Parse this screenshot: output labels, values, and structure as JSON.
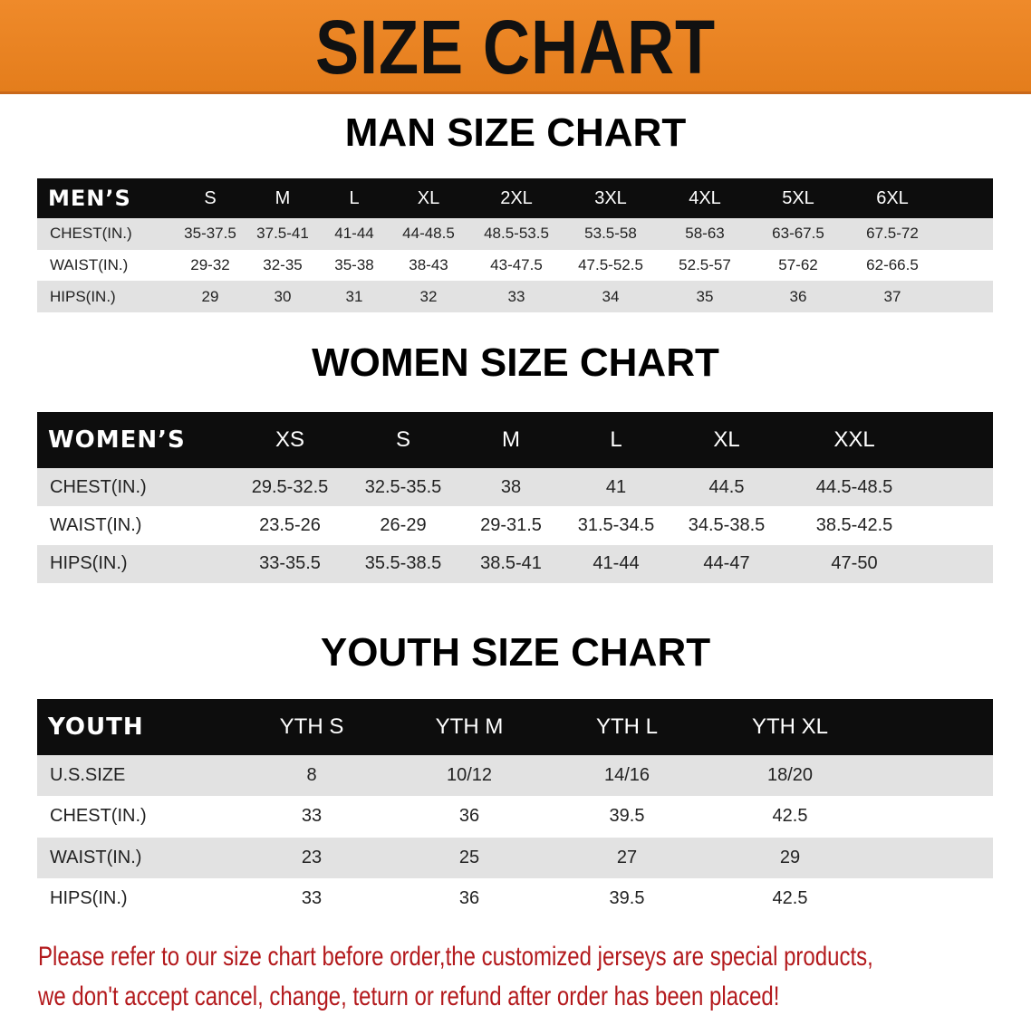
{
  "banner_title": "SIZE CHART",
  "men": {
    "title": "MAN SIZE CHART",
    "header": [
      "MEN’S",
      "S",
      "M",
      "L",
      "XL",
      "2XL",
      "3XL",
      "4XL",
      "5XL",
      "6XL"
    ],
    "rows": [
      [
        "CHEST(IN.)",
        "35-37.5",
        "37.5-41",
        "41-44",
        "44-48.5",
        "48.5-53.5",
        "53.5-58",
        "58-63",
        "63-67.5",
        "67.5-72"
      ],
      [
        "WAIST(IN.)",
        "29-32",
        "32-35",
        "35-38",
        "38-43",
        "43-47.5",
        "47.5-52.5",
        "52.5-57",
        "57-62",
        "62-66.5"
      ],
      [
        "HIPS(IN.)",
        "29",
        "30",
        "31",
        "32",
        "33",
        "34",
        "35",
        "36",
        "37"
      ]
    ]
  },
  "women": {
    "title": "WOMEN SIZE CHART",
    "header": [
      "WOMEN’S",
      "XS",
      "S",
      "M",
      "L",
      "XL",
      "XXL"
    ],
    "rows": [
      [
        "CHEST(IN.)",
        "29.5-32.5",
        "32.5-35.5",
        "38",
        "41",
        "44.5",
        "44.5-48.5"
      ],
      [
        "WAIST(IN.)",
        "23.5-26",
        "26-29",
        "29-31.5",
        "31.5-34.5",
        "34.5-38.5",
        "38.5-42.5"
      ],
      [
        "HIPS(IN.)",
        "33-35.5",
        "35.5-38.5",
        "38.5-41",
        "41-44",
        "44-47",
        "47-50"
      ]
    ]
  },
  "youth": {
    "title": "YOUTH SIZE CHART",
    "header": [
      "YOUTH",
      "YTH S",
      "YTH M",
      "YTH L",
      "YTH XL"
    ],
    "rows": [
      [
        "U.S.SIZE",
        "8",
        "10/12",
        "14/16",
        "18/20"
      ],
      [
        "CHEST(IN.)",
        "33",
        "36",
        "39.5",
        "42.5"
      ],
      [
        "WAIST(IN.)",
        "23",
        "25",
        "27",
        "29"
      ],
      [
        "HIPS(IN.)",
        "33",
        "36",
        "39.5",
        "42.5"
      ]
    ]
  },
  "note": [
    "Please refer to our size chart before order,the customized jerseys are special products,",
    "we don't accept cancel, change, teturn or refund after order has been placed!"
  ],
  "colors": {
    "banner": "#e8821f",
    "header_row": "#0d0d0d",
    "stripe": "#e2e2e2",
    "note": "#b3191c"
  }
}
